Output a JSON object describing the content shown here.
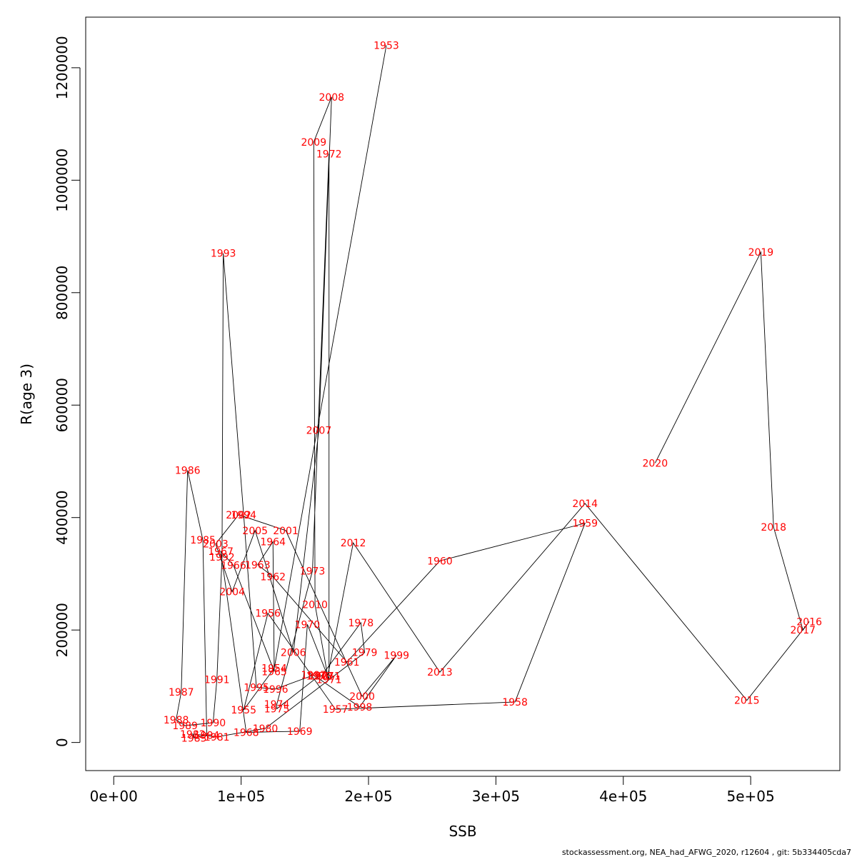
{
  "chart_data": {
    "type": "line",
    "title": "",
    "xlabel": "SSB",
    "ylabel": "R(age 3)",
    "xlim": [
      -22000,
      570000
    ],
    "ylim": [
      -50000,
      1290000
    ],
    "xticks": [
      0,
      100000,
      200000,
      300000,
      400000,
      500000
    ],
    "xtick_labels": [
      "0e+00",
      "1e+05",
      "2e+05",
      "3e+05",
      "4e+05",
      "5e+05"
    ],
    "yticks": [
      0,
      200000,
      400000,
      600000,
      800000,
      1000000,
      1200000
    ],
    "ytick_labels": [
      "0",
      "200000",
      "400000",
      "600000",
      "800000",
      "1000000",
      "1200000"
    ],
    "grid": false,
    "line_color": "#000000",
    "label_color": "#ff0000",
    "points": [
      {
        "year": "1953",
        "x": 214000,
        "y": 1240000
      },
      {
        "year": "1954",
        "x": 126000,
        "y": 132000
      },
      {
        "year": "1955",
        "x": 102000,
        "y": 58000
      },
      {
        "year": "1956",
        "x": 121000,
        "y": 230000
      },
      {
        "year": "1957",
        "x": 174000,
        "y": 59000
      },
      {
        "year": "1958",
        "x": 315000,
        "y": 72000
      },
      {
        "year": "1959",
        "x": 370000,
        "y": 390000
      },
      {
        "year": "1960",
        "x": 256000,
        "y": 323000
      },
      {
        "year": "1961",
        "x": 183000,
        "y": 143000
      },
      {
        "year": "1962",
        "x": 125000,
        "y": 295000
      },
      {
        "year": "1963",
        "x": 113000,
        "y": 316000
      },
      {
        "year": "1964",
        "x": 125000,
        "y": 357000
      },
      {
        "year": "1965",
        "x": 126000,
        "y": 126000
      },
      {
        "year": "1966",
        "x": 94000,
        "y": 315000
      },
      {
        "year": "1967",
        "x": 84000,
        "y": 340000
      },
      {
        "year": "1968",
        "x": 104000,
        "y": 18000
      },
      {
        "year": "1969",
        "x": 146000,
        "y": 20000
      },
      {
        "year": "1970",
        "x": 152000,
        "y": 210000
      },
      {
        "year": "1971",
        "x": 169000,
        "y": 112000
      },
      {
        "year": "1972",
        "x": 169000,
        "y": 1047000
      },
      {
        "year": "1973",
        "x": 156000,
        "y": 305000
      },
      {
        "year": "1974",
        "x": 128000,
        "y": 68000
      },
      {
        "year": "1975",
        "x": 128000,
        "y": 60000
      },
      {
        "year": "1976",
        "x": 161000,
        "y": 118000
      },
      {
        "year": "1977",
        "x": 163000,
        "y": 118000
      },
      {
        "year": "1978",
        "x": 194000,
        "y": 213000
      },
      {
        "year": "1979",
        "x": 197000,
        "y": 160000
      },
      {
        "year": "1980",
        "x": 119000,
        "y": 25000
      },
      {
        "year": "1981",
        "x": 81000,
        "y": 10000
      },
      {
        "year": "1982",
        "x": 62000,
        "y": 15000
      },
      {
        "year": "1983",
        "x": 63000,
        "y": 8000
      },
      {
        "year": "1984",
        "x": 73000,
        "y": 13000
      },
      {
        "year": "1985",
        "x": 70000,
        "y": 360000
      },
      {
        "year": "1986",
        "x": 58000,
        "y": 484000
      },
      {
        "year": "1987",
        "x": 53000,
        "y": 90000
      },
      {
        "year": "1988",
        "x": 49000,
        "y": 40000
      },
      {
        "year": "1989",
        "x": 56000,
        "y": 30000
      },
      {
        "year": "1990",
        "x": 78000,
        "y": 35000
      },
      {
        "year": "1991",
        "x": 81000,
        "y": 112000
      },
      {
        "year": "1992",
        "x": 85000,
        "y": 330000
      },
      {
        "year": "1993",
        "x": 86000,
        "y": 870000
      },
      {
        "year": "1994",
        "x": 102000,
        "y": 405000
      },
      {
        "year": "1995",
        "x": 112000,
        "y": 98000
      },
      {
        "year": "1996",
        "x": 127000,
        "y": 95000
      },
      {
        "year": "1997",
        "x": 157000,
        "y": 120000
      },
      {
        "year": "1998",
        "x": 193000,
        "y": 63000
      },
      {
        "year": "1999",
        "x": 222000,
        "y": 155000
      },
      {
        "year": "2000",
        "x": 195000,
        "y": 82000
      },
      {
        "year": "2001",
        "x": 135000,
        "y": 377000
      },
      {
        "year": "2002",
        "x": 98000,
        "y": 405000
      },
      {
        "year": "2003",
        "x": 80000,
        "y": 353000
      },
      {
        "year": "2004",
        "x": 93000,
        "y": 268000
      },
      {
        "year": "2005",
        "x": 111000,
        "y": 377000
      },
      {
        "year": "2006",
        "x": 141000,
        "y": 160000
      },
      {
        "year": "2007",
        "x": 161000,
        "y": 555000
      },
      {
        "year": "2008",
        "x": 171000,
        "y": 1148000
      },
      {
        "year": "2009",
        "x": 157000,
        "y": 1068000
      },
      {
        "year": "2010",
        "x": 158000,
        "y": 245000
      },
      {
        "year": "2011",
        "x": 168000,
        "y": 118000
      },
      {
        "year": "2012",
        "x": 188000,
        "y": 355000
      },
      {
        "year": "2013",
        "x": 256000,
        "y": 125000
      },
      {
        "year": "2014",
        "x": 370000,
        "y": 425000
      },
      {
        "year": "2015",
        "x": 497000,
        "y": 75000
      },
      {
        "year": "2016",
        "x": 546000,
        "y": 215000
      },
      {
        "year": "2017",
        "x": 541000,
        "y": 200000
      },
      {
        "year": "2018",
        "x": 518000,
        "y": 383000
      },
      {
        "year": "2019",
        "x": 508000,
        "y": 872000
      },
      {
        "year": "2020",
        "x": 425000,
        "y": 497000
      }
    ]
  },
  "footer_text": "stockassessment.org, NEA_had_AFWG_2020, r12604 , git: 5b334405cda7"
}
